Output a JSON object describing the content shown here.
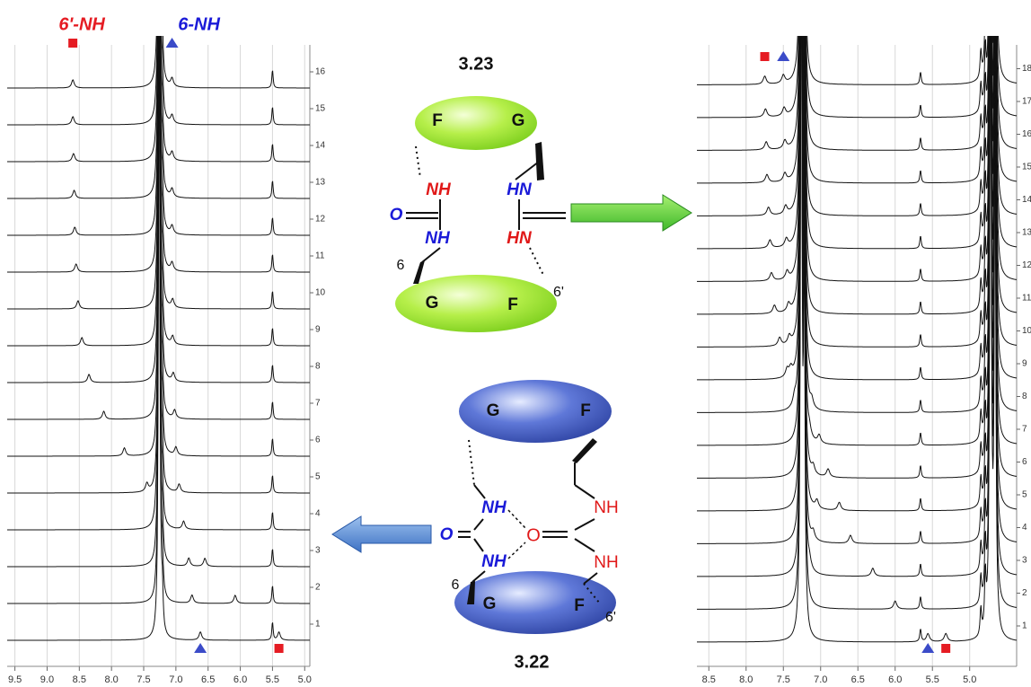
{
  "left_spectrum": {
    "annotations": [
      "6'-NH",
      "6-NH"
    ],
    "xlim": [
      9.62,
      4.92
    ],
    "xticks": [
      9.5,
      {
        "value": 9,
        "label": "9.0"
      },
      8.5,
      {
        "value": 8,
        "label": "8.0"
      },
      7.5,
      {
        "value": 7,
        "label": "7.0"
      },
      6.5,
      {
        "value": 6,
        "label": "6.0"
      },
      5.5,
      {
        "value": 5,
        "label": "5.0"
      }
    ],
    "fixed_peaks": [
      {
        "shift": 7.26,
        "height": 40
      },
      {
        "shift": 7.21,
        "height": 2
      },
      {
        "shift": 5.5,
        "height": 1
      }
    ],
    "traces": [
      {
        "label": 1,
        "nh6p": 5.4,
        "nh6": 6.62
      },
      {
        "label": 2,
        "nh6p": 6.08,
        "nh6": 6.75
      },
      {
        "label": 3,
        "nh6p": 6.55,
        "nh6": 6.8
      },
      {
        "label": 4,
        "nh6p": 7.3,
        "nh6": 6.88
      },
      {
        "label": 5,
        "nh6p": 7.45,
        "nh6": 6.95
      },
      {
        "label": 6,
        "nh6p": 7.8,
        "nh6": 7.0
      },
      {
        "label": 7,
        "nh6p": 8.12,
        "nh6": 7.02
      },
      {
        "label": 8,
        "nh6p": 8.35,
        "nh6": 7.04
      },
      {
        "label": 9,
        "nh6p": 8.46,
        "nh6": 7.05
      },
      {
        "label": 10,
        "nh6p": 8.52,
        "nh6": 7.05
      },
      {
        "label": 11,
        "nh6p": 8.55,
        "nh6": 7.06
      },
      {
        "label": 12,
        "nh6p": 8.57,
        "nh6": 7.06
      },
      {
        "label": 13,
        "nh6p": 8.58,
        "nh6": 7.06
      },
      {
        "label": 14,
        "nh6p": 8.59,
        "nh6": 7.06
      },
      {
        "label": 15,
        "nh6p": 8.6,
        "nh6": 7.06
      },
      {
        "label": 16,
        "nh6p": 8.6,
        "nh6": 7.06
      }
    ]
  },
  "right_spectrum": {
    "xlim": [
      8.66,
      4.37
    ],
    "xticks": [
      8.5,
      {
        "value": 8,
        "label": "8.0"
      },
      7.5,
      {
        "value": 7,
        "label": "7.0"
      },
      6.5,
      {
        "value": 6,
        "label": "6.0"
      },
      5.5,
      {
        "value": 5,
        "label": "5.0"
      }
    ],
    "fixed_peaks": [
      {
        "shift": 7.26,
        "height": 40
      },
      {
        "shift": 7.22,
        "height": 20
      },
      {
        "shift": 5.66,
        "height": 0.7
      },
      {
        "shift": 4.85,
        "height": 1.5
      },
      {
        "shift": 4.79,
        "height": 3
      },
      {
        "shift": 4.72,
        "height": 40
      },
      {
        "shift": 4.66,
        "height": 30
      }
    ],
    "traces": [
      {
        "label": 1,
        "nh6p": 5.32,
        "nh6": 5.56
      },
      {
        "label": 2,
        "nh6p": 7.2,
        "nh6": 6.0
      },
      {
        "label": 3,
        "nh6p": 7.15,
        "nh6": 6.3
      },
      {
        "label": 4,
        "nh6p": 7.1,
        "nh6": 6.6
      },
      {
        "label": 5,
        "nh6p": 7.05,
        "nh6": 6.75
      },
      {
        "label": 6,
        "nh6p": 7.1,
        "nh6": 6.9
      },
      {
        "label": 7,
        "nh6p": 7.15,
        "nh6": 7.02
      },
      {
        "label": 8,
        "nh6p": 7.35,
        "nh6": 7.12
      },
      {
        "label": 9,
        "nh6p": 7.45,
        "nh6": 7.4
      },
      {
        "label": 10,
        "nh6p": 7.55,
        "nh6": 7.42
      },
      {
        "label": 11,
        "nh6p": 7.62,
        "nh6": 7.43
      },
      {
        "label": 12,
        "nh6p": 7.66,
        "nh6": 7.45
      },
      {
        "label": 13,
        "nh6p": 7.68,
        "nh6": 7.46
      },
      {
        "label": 14,
        "nh6p": 7.7,
        "nh6": 7.47
      },
      {
        "label": 15,
        "nh6p": 7.72,
        "nh6": 7.48
      },
      {
        "label": 16,
        "nh6p": 7.73,
        "nh6": 7.48
      },
      {
        "label": 17,
        "nh6p": 7.74,
        "nh6": 7.49
      },
      {
        "label": 18,
        "nh6p": 7.75,
        "nh6": 7.5
      }
    ]
  },
  "complex_top": {
    "label": "3.23",
    "upper_unit": [
      "F",
      "G"
    ],
    "lower_unit": [
      "G",
      "F"
    ],
    "left_urea": [
      "NH",
      "O",
      "NH"
    ],
    "right_urea": [
      "HN",
      "O",
      "HN"
    ],
    "positions": [
      "6",
      "6'"
    ]
  },
  "complex_bottom": {
    "label": "3.22",
    "upper_unit": [
      "G",
      "F"
    ],
    "lower_unit": [
      "G",
      "F"
    ],
    "left_urea": [
      "NH",
      "O",
      "NH"
    ],
    "right_urea": [
      "NH",
      "O",
      "NH"
    ],
    "positions": [
      "6",
      "6'"
    ]
  }
}
